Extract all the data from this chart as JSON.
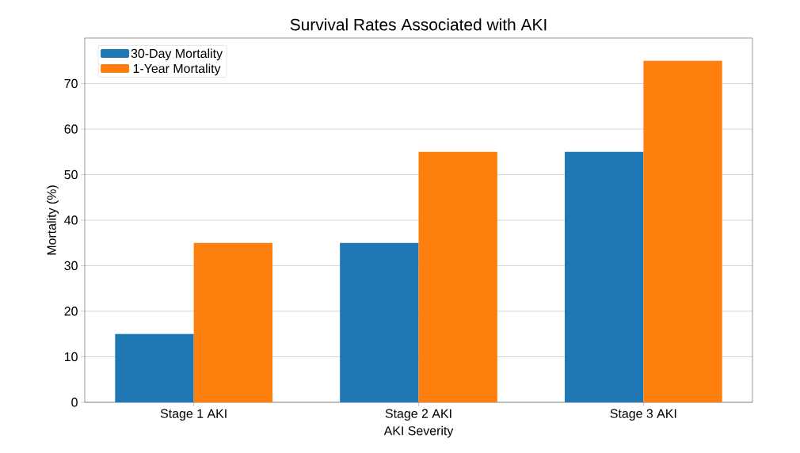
{
  "chart_data": {
    "type": "bar",
    "title": "Survival Rates Associated with AKI",
    "xlabel": "AKI Severity",
    "ylabel": "Mortality (%)",
    "categories": [
      "Stage 1 AKI",
      "Stage 2 AKI",
      "Stage 3 AKI"
    ],
    "series": [
      {
        "name": "30-Day Mortality",
        "color": "#1f77b4",
        "values": [
          15,
          35,
          55
        ]
      },
      {
        "name": "1-Year Mortality",
        "color": "#ff7f0e",
        "values": [
          35,
          55,
          75
        ]
      }
    ],
    "ylim": [
      0,
      80
    ],
    "yticks": [
      0,
      10,
      20,
      30,
      40,
      50,
      60,
      70
    ],
    "grid": "y",
    "legend": "top left"
  }
}
